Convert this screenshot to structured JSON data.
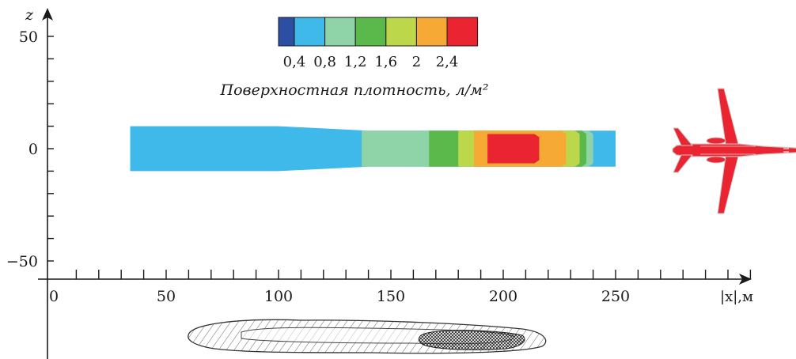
{
  "chart_data": {
    "type": "heatmap",
    "title": "",
    "xlabel": "|x|,м",
    "ylabel": "z",
    "x_tick_labels": [
      "0",
      "50",
      "100",
      "150",
      "200",
      "250"
    ],
    "z_tick_labels": [
      "50",
      "0",
      "−50"
    ],
    "xlim": [
      0,
      310
    ],
    "zlim": [
      -57,
      60
    ],
    "colorbar": {
      "label": "Поверхностная плотность, л/м²",
      "tick_labels": [
        "0,4",
        "0,8",
        "1,2",
        "1,6",
        "2",
        "2,4"
      ],
      "ticks": [
        0.4,
        0.8,
        1.2,
        1.6,
        2.0,
        2.4
      ],
      "colors": [
        "#2d4fa3",
        "#3fb8ea",
        "#8fd3a8",
        "#5ab94a",
        "#bcd84a",
        "#f7a935",
        "#ea2430"
      ]
    },
    "deposit_zones": [
      {
        "level": 0.8,
        "x": [
          34,
          250
        ],
        "z_half_width": [
          10,
          8
        ],
        "color": "#3fb8ea"
      },
      {
        "level": 1.2,
        "x": [
          137,
          240
        ],
        "z_half_width": [
          8,
          8
        ],
        "color": "#8fd3a8"
      },
      {
        "level": 1.6,
        "x": [
          167,
          237
        ],
        "z_half_width": [
          8,
          8
        ],
        "color": "#5ab94a"
      },
      {
        "level": 2.0,
        "x": [
          180,
          234
        ],
        "z_half_width": [
          8,
          8
        ],
        "color": "#bcd84a"
      },
      {
        "level": 2.4,
        "x": [
          187,
          228
        ],
        "z_half_width": [
          8,
          8
        ],
        "color": "#f7a935"
      },
      {
        "level": 2.6,
        "x": [
          193,
          216
        ],
        "z_half_width": [
          6.5,
          6.5
        ],
        "color": "#ea2430"
      }
    ]
  },
  "graphics": {
    "aircraft": "aircraft-silhouette-icon",
    "field_sketch": "hand-drawn-deposit-sketch"
  }
}
